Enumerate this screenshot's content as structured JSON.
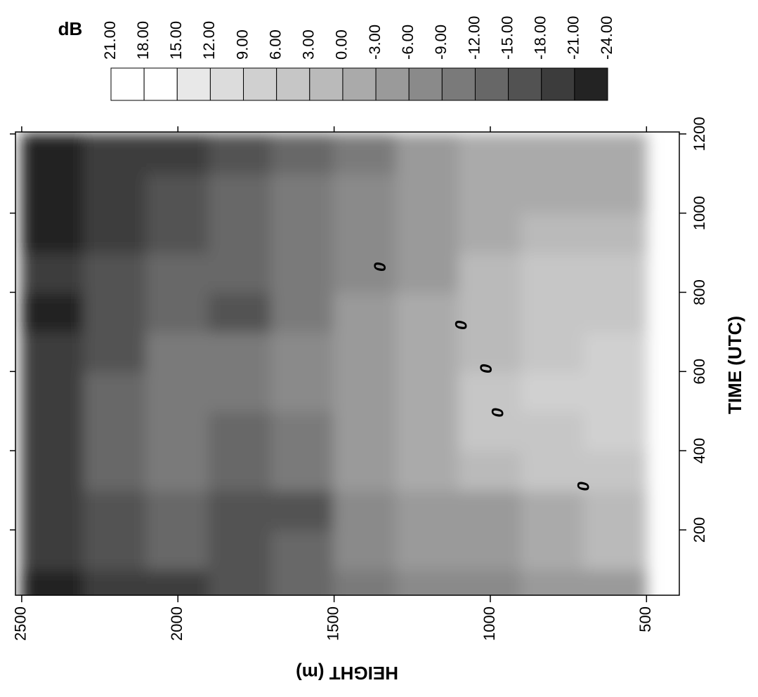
{
  "chart_data": {
    "type": "contour",
    "xlabel": "TIME (UTC)",
    "ylabel": "HEIGHT (m)",
    "x": [
      50,
      150,
      250,
      350,
      450,
      550,
      650,
      750,
      850,
      950,
      1050,
      1150
    ],
    "y": [
      2400,
      2200,
      2000,
      1800,
      1600,
      1400,
      1200,
      1000,
      800,
      600
    ],
    "z": [
      [
        -24,
        -21,
        -21,
        -21,
        -21,
        -21,
        -21,
        -24,
        -21,
        -24,
        -24,
        -24
      ],
      [
        -21,
        -18,
        -18,
        -15,
        -15,
        -15,
        -18,
        -18,
        -18,
        -21,
        -21,
        -21
      ],
      [
        -21,
        -15,
        -15,
        -12,
        -12,
        -12,
        -12,
        -15,
        -15,
        -18,
        -18,
        -21
      ],
      [
        -18,
        -18,
        -18,
        -15,
        -15,
        -12,
        -12,
        -18,
        -15,
        -15,
        -15,
        -18
      ],
      [
        -15,
        -15,
        -18,
        -12,
        -12,
        -9,
        -9,
        -12,
        -12,
        -12,
        -12,
        -15
      ],
      [
        -12,
        -9,
        -9,
        -6,
        -6,
        -6,
        -6,
        -6,
        -9,
        -9,
        -9,
        -12
      ],
      [
        -9,
        -6,
        -6,
        -3,
        -3,
        -3,
        -3,
        -3,
        -6,
        -6,
        -6,
        -6
      ],
      [
        -9,
        -6,
        -6,
        0,
        3,
        3,
        0,
        0,
        0,
        -3,
        -3,
        -3
      ],
      [
        -6,
        -3,
        -3,
        3,
        3,
        6,
        3,
        3,
        3,
        0,
        -3,
        -3
      ],
      [
        -6,
        0,
        0,
        3,
        6,
        6,
        6,
        3,
        3,
        0,
        -3,
        -3
      ]
    ],
    "xlim": [
      35,
      1205
    ],
    "ylim": [
      395,
      2520
    ],
    "xticks": [
      200,
      400,
      600,
      800,
      1000,
      1200
    ],
    "yticks": [
      500,
      1000,
      1500,
      2000,
      2500
    ],
    "colorbar": {
      "title": "dB",
      "levels": [
        {
          "value": 21,
          "label": "21.00"
        },
        {
          "value": 18,
          "label": "18.00"
        },
        {
          "value": 15,
          "label": "15.00"
        },
        {
          "value": 12,
          "label": "12.00"
        },
        {
          "value": 9,
          "label": "9.00"
        },
        {
          "value": 6,
          "label": "6.00"
        },
        {
          "value": 3,
          "label": "3.00"
        },
        {
          "value": 0,
          "label": "0.00"
        },
        {
          "value": -3,
          "label": "-3.00"
        },
        {
          "value": -6,
          "label": "-6.00"
        },
        {
          "value": -9,
          "label": "-9.00"
        },
        {
          "value": -12,
          "label": "-12.00"
        },
        {
          "value": -15,
          "label": "-15.00"
        },
        {
          "value": -18,
          "label": "-18.00"
        },
        {
          "value": -21,
          "label": "-21.00"
        },
        {
          "value": -24,
          "label": "-24.00"
        }
      ],
      "colors": [
        "#ffffff",
        "#ffffff",
        "#e8e8e8",
        "#dcdcdc",
        "#d0d0d0",
        "#c6c6c6",
        "#bababa",
        "#aaaaaa",
        "#9a9a9a",
        "#8a8a8a",
        "#7a7a7a",
        "#676767",
        "#525252",
        "#3c3c3c",
        "#232323"
      ]
    },
    "annotations": [
      {
        "text": "0",
        "x": 864,
        "y": 1349
      },
      {
        "text": "0",
        "x": 717,
        "y": 1089
      },
      {
        "text": "0",
        "x": 607,
        "y": 1010
      },
      {
        "text": "0",
        "x": 496,
        "y": 972
      },
      {
        "text": "0",
        "x": 310,
        "y": 698
      }
    ]
  }
}
